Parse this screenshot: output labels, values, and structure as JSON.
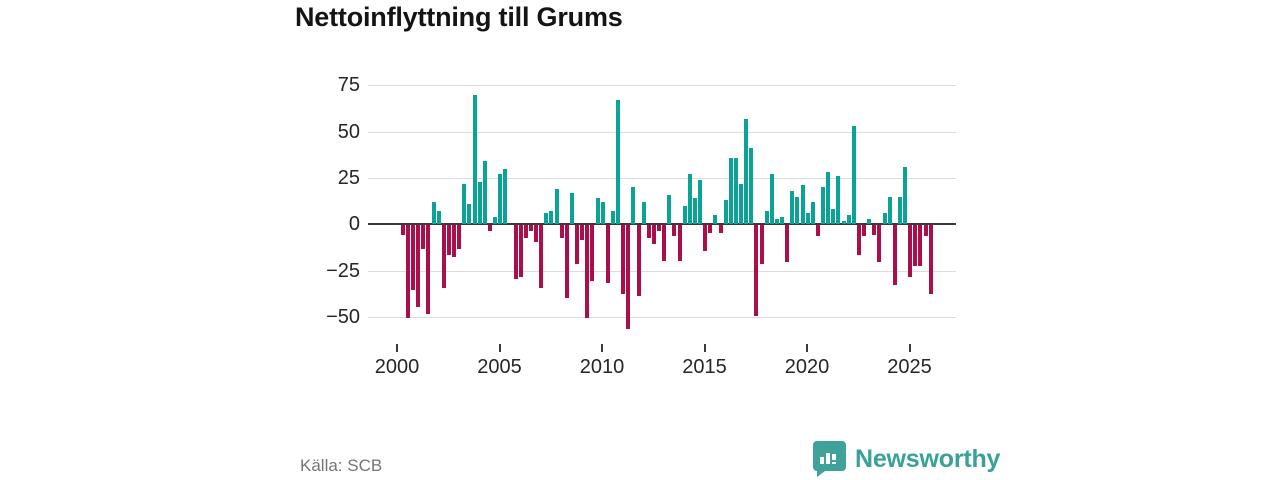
{
  "header": {
    "title": "Nettoinflyttning till Grums"
  },
  "footer": {
    "source": "Källa: SCB",
    "brand": "Newsworthy"
  },
  "chart_data": {
    "type": "bar",
    "title": "Nettoinflyttning till Grums",
    "frequency": "quarterly",
    "start": "2000Q1",
    "end": "2025Q4",
    "values": [
      -5,
      -50,
      -35,
      -44,
      -13,
      -48,
      12,
      7,
      -34,
      -16,
      -17,
      -13,
      22,
      11,
      70,
      23,
      34,
      -3,
      4,
      27,
      30,
      0,
      -29,
      -28,
      -7,
      -3,
      -9,
      -34,
      6,
      7,
      19,
      -7,
      -39,
      17,
      -21,
      -8,
      -50,
      -30,
      14,
      12,
      -31,
      7,
      67,
      -37,
      -56,
      20,
      -38,
      12,
      -7,
      -10,
      -3,
      -19,
      16,
      -6,
      -19,
      10,
      27,
      14,
      24,
      -14,
      -4,
      5,
      -4,
      13,
      36,
      36,
      22,
      57,
      41,
      -49,
      -21,
      7,
      27,
      3,
      4,
      -20,
      18,
      15,
      21,
      6,
      12,
      -6,
      20,
      28,
      8,
      26,
      2,
      5,
      53,
      -16,
      -6,
      3,
      -5,
      -20,
      6,
      15,
      -32,
      15,
      31,
      -28,
      -22,
      -22,
      -6,
      -37
    ],
    "x_ticks": [
      2000,
      2005,
      2010,
      2015,
      2020,
      2025
    ],
    "y_ticks": [
      75,
      50,
      25,
      0,
      -25,
      -50
    ],
    "y_tick_labels": [
      "75",
      "50",
      "25",
      "0",
      "−25",
      "−50"
    ],
    "ylim": [
      -60,
      80
    ],
    "grid": true,
    "legend": "none",
    "positive_color": "#0aa396",
    "negative_color": "#ac0d4b",
    "axis_color": "#3a3a3a",
    "grid_color": "#dcdcdc",
    "source": "Källa: SCB"
  },
  "logo": {
    "icon": "newsworthy-speech-bubble-bar-chart-icon",
    "color": "#3fa39c"
  }
}
